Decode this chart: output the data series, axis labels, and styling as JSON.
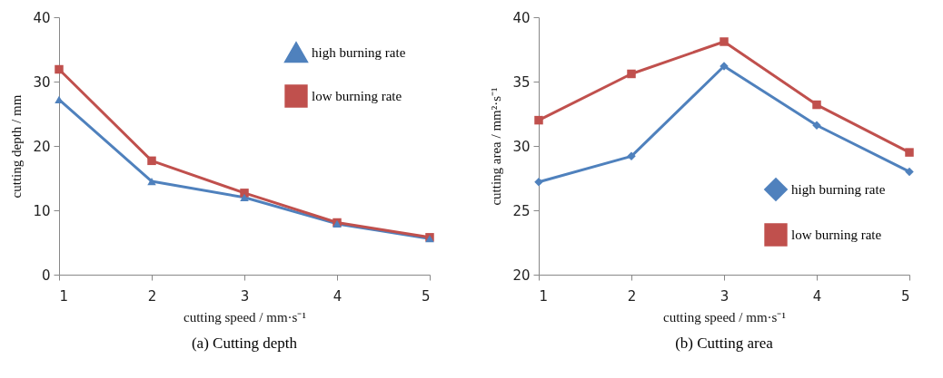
{
  "chart_data": [
    {
      "type": "line",
      "title": "(a) Cutting depth",
      "xlabel": "cutting speed / mm·s⁻¹",
      "ylabel": "cutting depth / mm",
      "x": [
        1,
        2,
        3,
        4,
        5
      ],
      "xlim": [
        1,
        5
      ],
      "xticks": [
        1,
        2,
        3,
        4,
        5
      ],
      "ylim": [
        0,
        40
      ],
      "yticks": [
        0,
        10,
        20,
        30,
        40
      ],
      "grid": false,
      "legend": "top right",
      "series": [
        {
          "name": "high burning rate",
          "color": "#4f81bd",
          "marker": "triangle",
          "values": [
            27.2,
            14.5,
            12.0,
            7.9,
            5.6
          ]
        },
        {
          "name": "low burning rate",
          "color": "#c0504d",
          "marker": "square",
          "values": [
            31.9,
            17.7,
            12.7,
            8.1,
            5.8
          ]
        }
      ]
    },
    {
      "type": "line",
      "title": "(b) Cutting area",
      "xlabel": "cutting speed / mm·s⁻¹",
      "ylabel": "cutting area / mm²·s⁻¹",
      "x": [
        1,
        2,
        3,
        4,
        5
      ],
      "xlim": [
        1,
        5
      ],
      "xticks": [
        1,
        2,
        3,
        4,
        5
      ],
      "ylim": [
        20,
        40
      ],
      "yticks": [
        20,
        25,
        30,
        35,
        40
      ],
      "grid": false,
      "legend": "bottom right",
      "series": [
        {
          "name": "high burning rate",
          "color": "#4f81bd",
          "marker": "diamond",
          "values": [
            27.2,
            29.2,
            36.2,
            31.6,
            28.0
          ]
        },
        {
          "name": "low burning rate",
          "color": "#c0504d",
          "marker": "square",
          "values": [
            32.0,
            35.6,
            38.1,
            33.2,
            29.5
          ]
        }
      ]
    }
  ]
}
